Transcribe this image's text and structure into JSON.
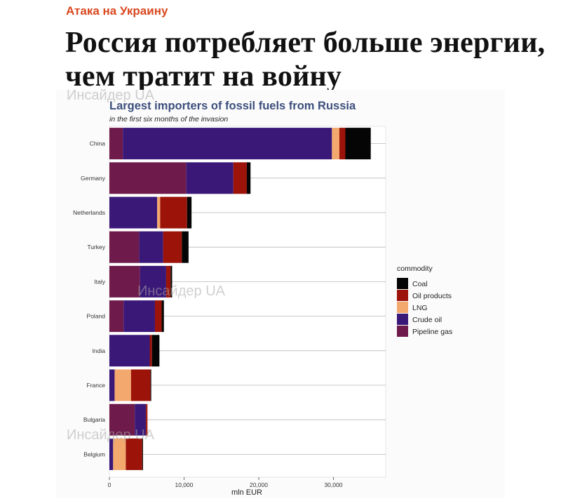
{
  "header": {
    "kicker": "Атака на Украину",
    "headline": "Россия потребляет больше энергии, чем тратит на войну"
  },
  "watermark": "Инсайдер UA",
  "colors": {
    "kicker": "#d9481f",
    "Coal": "#050505",
    "Oil products": "#9b1309",
    "LNG": "#f3a86e",
    "Crude oil": "#3a1878",
    "Pipeline gas": "#6e1a4b",
    "title": "#3c4f7c"
  },
  "chart_data": {
    "type": "bar",
    "orientation": "horizontal",
    "stacked": true,
    "title": "Largest importers of fossil fuels from Russia",
    "subtitle": "in the first six months of the invasion",
    "xlabel": "mln EUR",
    "ylabel": "",
    "xlim": [
      0,
      37000
    ],
    "xticks": [
      0,
      10000,
      20000,
      30000
    ],
    "xtick_labels": [
      "0",
      "10,000",
      "20,000",
      "30,000"
    ],
    "grid": true,
    "legend": {
      "title": "commodity",
      "position": "right",
      "items": [
        "Coal",
        "Oil products",
        "LNG",
        "Crude oil",
        "Pipeline gas"
      ]
    },
    "categories": [
      "China",
      "Germany",
      "Netherlands",
      "Turkey",
      "Italy",
      "Poland",
      "India",
      "France",
      "Bulgaria",
      "Belgium"
    ],
    "series": [
      {
        "name": "Pipeline gas",
        "values": [
          1800,
          10300,
          0,
          4000,
          4100,
          1900,
          0,
          0,
          3400,
          0
        ]
      },
      {
        "name": "Crude oil",
        "values": [
          28000,
          6300,
          6400,
          3200,
          3500,
          4200,
          5400,
          700,
          1500,
          500
        ]
      },
      {
        "name": "LNG",
        "values": [
          1000,
          0,
          400,
          0,
          0,
          0,
          0,
          2200,
          0,
          1700
        ]
      },
      {
        "name": "Oil products",
        "values": [
          800,
          1800,
          3600,
          2500,
          600,
          900,
          300,
          2600,
          200,
          2200
        ]
      },
      {
        "name": "Coal",
        "values": [
          3400,
          500,
          600,
          900,
          200,
          300,
          1000,
          100,
          0,
          100
        ]
      }
    ]
  }
}
